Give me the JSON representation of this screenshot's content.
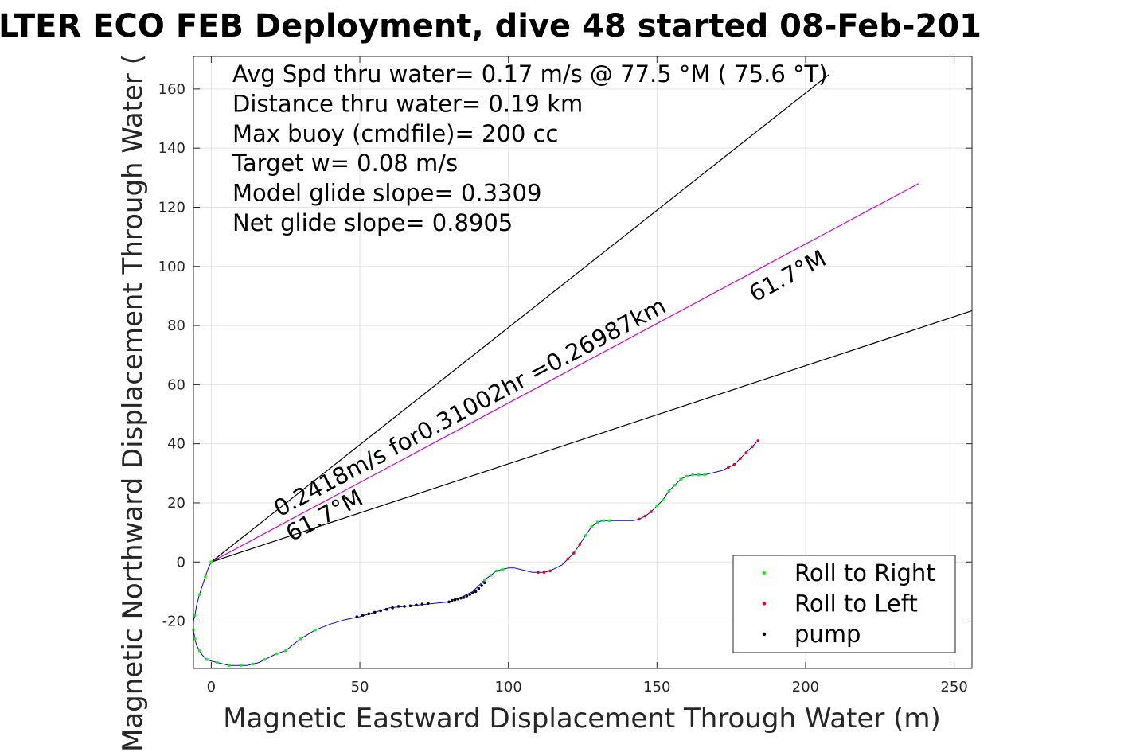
{
  "chart_data": {
    "type": "line",
    "title": "LTER ECO FEB Deployment, dive 48 started 08-Feb-201",
    "xlabel": "Magnetic Eastward Displacement Through Water (m)",
    "ylabel": "Magnetic Northward Displacement Through Water (",
    "xlim": [
      -6,
      256
    ],
    "ylim": [
      -36,
      171
    ],
    "x_ticks": [
      0,
      50,
      100,
      150,
      200,
      250
    ],
    "y_ticks": [
      -20,
      0,
      20,
      40,
      60,
      80,
      100,
      120,
      140,
      160
    ],
    "x_tick_labels": [
      "0",
      "50",
      "100",
      "150",
      "200",
      "250"
    ],
    "y_tick_labels": [
      "-20",
      "0",
      "20",
      "40",
      "60",
      "80",
      "100",
      "120",
      "140",
      "160"
    ],
    "grid": true,
    "stats": [
      "Avg Spd thru water=  0.17 m/s @  77.5 °M ( 75.6 °T)",
      "Distance thru water=  0.19 km",
      "Max buoy (cmdfile)= 200 cc",
      "Target w= 0.08 m/s",
      "Model glide slope= 0.3309",
      "Net glide slope= 0.8905"
    ],
    "annotations": [
      "0.2418m/s for0.31002hr =0.26987km",
      "61.7°M",
      "61.7°M"
    ],
    "legend": {
      "position": "bottom-right",
      "entries": [
        {
          "label": "Roll to Right",
          "color": "#00ff00"
        },
        {
          "label": "Roll to Left",
          "color": "#ff0000"
        },
        {
          "label": "pump",
          "color": "#000000"
        }
      ]
    },
    "reference_lines": [
      {
        "name": "upper",
        "x": [
          0,
          208
        ],
        "y": [
          0,
          165
        ],
        "color": "#000000"
      },
      {
        "name": "center",
        "x": [
          0,
          238
        ],
        "y": [
          0,
          128
        ],
        "color": "#cc00cc"
      },
      {
        "name": "lower",
        "x": [
          0,
          256
        ],
        "y": [
          0,
          85
        ],
        "color": "#000000"
      }
    ],
    "track": {
      "color": "#0000ff",
      "x": [
        0,
        -1,
        -2,
        -3,
        -4,
        -5,
        -5.5,
        -6,
        -6,
        -5.5,
        -5,
        -4,
        -3,
        -1.5,
        0,
        2,
        4,
        6,
        8,
        10,
        12,
        14,
        16,
        18,
        20,
        22,
        25,
        30,
        35,
        40,
        45,
        50,
        55,
        60,
        65,
        70,
        75,
        80,
        82,
        84,
        86,
        88,
        90,
        92,
        94,
        96,
        98,
        100,
        102,
        104,
        106,
        108,
        110,
        112,
        114,
        116,
        118,
        120,
        122,
        124,
        126,
        128,
        130,
        132,
        134,
        136,
        138,
        140,
        142,
        144,
        146,
        148,
        150,
        152,
        154,
        156,
        158,
        160,
        162,
        164,
        166,
        168,
        170,
        172,
        174,
        176,
        178,
        180,
        182,
        184
      ],
      "y": [
        0,
        -2,
        -5,
        -8,
        -11,
        -15,
        -18,
        -20,
        -23,
        -26,
        -28,
        -30,
        -31.5,
        -33,
        -33.5,
        -34,
        -34.5,
        -35,
        -35,
        -35,
        -35,
        -34.5,
        -34,
        -33,
        -32,
        -31,
        -30,
        -26,
        -23,
        -21,
        -19.5,
        -18.5,
        -17,
        -15.5,
        -15,
        -14.5,
        -14,
        -13.5,
        -12.5,
        -12,
        -11,
        -10,
        -8,
        -6,
        -4.5,
        -3,
        -2.5,
        -2,
        -2,
        -2.5,
        -3,
        -3.5,
        -3.5,
        -3.5,
        -3,
        -2,
        -1,
        1,
        3,
        6,
        9,
        12,
        13.5,
        14,
        14,
        14,
        14,
        14,
        14,
        14.5,
        15.5,
        17,
        19,
        21,
        24,
        26,
        28,
        29,
        29.5,
        29.5,
        29.5,
        30,
        30.5,
        31,
        32,
        33,
        35,
        37,
        39,
        41
      ]
    },
    "markers": {
      "roll_right": {
        "color": "#00ff00",
        "x": [
          0,
          -2,
          -4,
          -5.5,
          -6,
          -5.5,
          -4,
          -1.5,
          2,
          6,
          10,
          14,
          18,
          22,
          25,
          30,
          35,
          92,
          94,
          96,
          98,
          126,
          128,
          130,
          132,
          134,
          150,
          152,
          154,
          156,
          158,
          160,
          162,
          164,
          166
        ],
        "y": [
          0,
          -5,
          -11,
          -18,
          -23,
          -26,
          -30,
          -33,
          -34,
          -35,
          -35,
          -34.5,
          -33,
          -31,
          -30,
          -26,
          -23,
          -6,
          -4.5,
          -3,
          -2.5,
          9,
          12,
          13.5,
          14,
          14,
          19,
          21,
          24,
          26,
          28,
          29,
          29.5,
          29.5,
          29.5
        ]
      },
      "roll_left": {
        "color": "#ff0000",
        "x": [
          110,
          112,
          114,
          120,
          122,
          124,
          144,
          146,
          148,
          174,
          176,
          178,
          180,
          182,
          184
        ],
        "y": [
          -3.5,
          -3.5,
          -3,
          1,
          3,
          6,
          14.5,
          15.5,
          17,
          32,
          33,
          35,
          37,
          39,
          41
        ]
      },
      "pump": {
        "color": "#000000",
        "x": [
          0,
          49,
          51,
          53,
          55,
          57,
          59,
          61,
          63,
          65,
          67,
          69,
          71,
          73,
          80,
          81,
          82,
          83,
          84,
          85,
          86,
          87,
          88,
          89,
          90,
          91,
          92
        ],
        "y": [
          0,
          -18.5,
          -18,
          -17.5,
          -17,
          -16.5,
          -16,
          -15.5,
          -15,
          -15,
          -14.8,
          -14.5,
          -14.2,
          -14,
          -13.5,
          -13,
          -12.8,
          -12.5,
          -12.2,
          -12,
          -11.5,
          -11,
          -10.5,
          -10,
          -9,
          -8,
          -7
        ]
      }
    }
  }
}
